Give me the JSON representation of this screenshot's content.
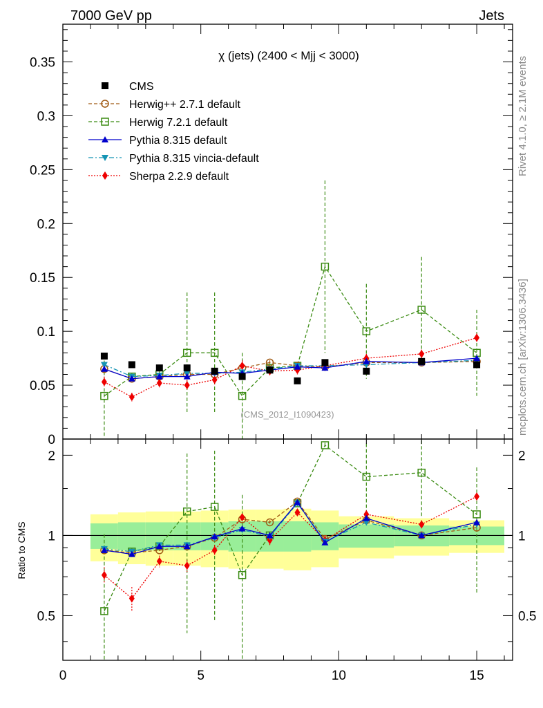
{
  "header": {
    "left": "7000 GeV pp",
    "right": "Jets"
  },
  "side_text": {
    "rivet": "Rivet 4.1.0, ≥ 2.1M events",
    "mcplots": "mcplots.cern.ch [arXiv:1306.3436]"
  },
  "watermark": "(CMS_2012_I1090423)",
  "chart_data": {
    "type": "scatter",
    "title": "χ (jets) (2400 < Mjj < 3000)",
    "xlabel": "",
    "ylabel": "",
    "xlim": [
      0,
      16.3
    ],
    "ylim": [
      0,
      0.385
    ],
    "yticks": [
      0,
      0.05,
      0.1,
      0.15,
      0.2,
      0.25,
      0.3,
      0.35
    ],
    "ytick_labels": [
      "0",
      "0.05",
      "0.1",
      "0.15",
      "0.2",
      "0.25",
      "0.3",
      "0.35"
    ],
    "xticks": [
      0,
      5,
      10,
      15
    ],
    "xtick_labels": [
      "0",
      "5",
      "10",
      "15"
    ],
    "x_edges": [
      1,
      2,
      3,
      4,
      5,
      6,
      7,
      8,
      9,
      10,
      12,
      14,
      16
    ],
    "x": [
      1.5,
      2.5,
      3.5,
      4.5,
      5.5,
      6.5,
      7.5,
      8.5,
      9.5,
      11,
      13,
      15
    ],
    "legend_position": "top-left",
    "series": [
      {
        "name": "CMS",
        "color": "#000000",
        "marker": "filled-square",
        "line": "none",
        "values": [
          0.077,
          0.069,
          0.066,
          0.066,
          0.063,
          0.058,
          0.064,
          0.054,
          0.071,
          0.063,
          0.072,
          0.069
        ],
        "errors": [
          0.003,
          0.002,
          0.002,
          0.002,
          0.002,
          0.002,
          0.002,
          0.002,
          0.002,
          0.002,
          0.002,
          0.002
        ]
      },
      {
        "name": "Herwig++ 2.7.1 default",
        "color": "#a05a14",
        "marker": "open-circle",
        "line": "dashed",
        "values": [
          0.065,
          0.056,
          0.058,
          0.06,
          0.06,
          0.066,
          0.071,
          0.068,
          0.067,
          0.071,
          0.071,
          0.072
        ],
        "errors": [
          0.003,
          0.002,
          0.002,
          0.002,
          0.002,
          0.003,
          0.002,
          0.002,
          0.002,
          0.002,
          0.002,
          0.003
        ]
      },
      {
        "name": "Herwig 7.2.1 default",
        "color": "#3c8c14",
        "marker": "open-square",
        "line": "dashed",
        "values": [
          0.04,
          0.058,
          0.06,
          0.08,
          0.08,
          0.04,
          0.066,
          0.068,
          0.16,
          0.1,
          0.12,
          0.08
        ],
        "errors": [
          0.038,
          0.003,
          0.003,
          0.056,
          0.056,
          0.04,
          0.003,
          0.003,
          0.08,
          0.044,
          0.049,
          0.04
        ]
      },
      {
        "name": "Pythia 8.315 default",
        "color": "#0000cc",
        "marker": "filled-triangle-up",
        "line": "solid",
        "values": [
          0.065,
          0.056,
          0.058,
          0.058,
          0.062,
          0.061,
          0.064,
          0.067,
          0.066,
          0.072,
          0.071,
          0.075
        ],
        "errors": [
          0.002,
          0.002,
          0.002,
          0.002,
          0.002,
          0.002,
          0.002,
          0.002,
          0.002,
          0.002,
          0.002,
          0.002
        ]
      },
      {
        "name": "Pythia 8.315 vincia-default",
        "color": "#1494b4",
        "marker": "filled-triangle-down",
        "line": "dashdot",
        "values": [
          0.069,
          0.058,
          0.059,
          0.061,
          0.061,
          0.062,
          0.065,
          0.068,
          0.068,
          0.069,
          0.071,
          0.073
        ],
        "errors": [
          0.002,
          0.002,
          0.002,
          0.002,
          0.002,
          0.002,
          0.002,
          0.002,
          0.002,
          0.002,
          0.002,
          0.002
        ]
      },
      {
        "name": "Sherpa 2.2.9 default",
        "color": "#ee0000",
        "marker": "filled-diamond",
        "line": "dotted",
        "values": [
          0.053,
          0.039,
          0.052,
          0.05,
          0.055,
          0.068,
          0.063,
          0.064,
          0.068,
          0.075,
          0.079,
          0.094
        ],
        "errors": [
          0.005,
          0.004,
          0.004,
          0.005,
          0.005,
          0.005,
          0.004,
          0.004,
          0.004,
          0.004,
          0.004,
          0.004
        ]
      }
    ],
    "ratio": {
      "ylabel": "Ratio to CMS",
      "ylim": [
        0.34,
        2.3
      ],
      "yticks": [
        0.5,
        1,
        2
      ],
      "ytick_labels": [
        "0.5",
        "1",
        "2"
      ],
      "reference_line": 1,
      "band_inner": [
        0.11,
        0.12,
        0.12,
        0.12,
        0.12,
        0.13,
        0.13,
        0.13,
        0.12,
        0.1,
        0.09,
        0.08
      ],
      "band_outer": [
        0.2,
        0.22,
        0.23,
        0.23,
        0.24,
        0.25,
        0.25,
        0.26,
        0.24,
        0.18,
        0.16,
        0.14
      ],
      "series": [
        {
          "name": "Herwig++ 2.7.1 default",
          "values": [
            0.88,
            0.86,
            0.88,
            0.91,
            0.98,
            1.15,
            1.12,
            1.34,
            0.97,
            1.14,
            1.0,
            1.07
          ],
          "errors": [
            0.03,
            0.02,
            0.02,
            0.02,
            0.02,
            0.03,
            0.02,
            0.02,
            0.02,
            0.02,
            0.02,
            0.03
          ]
        },
        {
          "name": "Herwig 7.2.1 default",
          "values": [
            0.52,
            0.87,
            0.91,
            1.23,
            1.28,
            0.71,
            1.0,
            1.32,
            2.18,
            1.66,
            1.72,
            1.2
          ],
          "errors": [
            0.49,
            0.03,
            0.03,
            0.8,
            0.8,
            0.71,
            0.03,
            0.03,
            0.05,
            0.55,
            0.55,
            0.6
          ]
        },
        {
          "name": "Pythia 8.315 default",
          "values": [
            0.88,
            0.85,
            0.91,
            0.91,
            0.99,
            1.06,
            1.0,
            1.33,
            0.94,
            1.16,
            1.0,
            1.12
          ],
          "errors": [
            0.02,
            0.02,
            0.02,
            0.02,
            0.02,
            0.02,
            0.02,
            0.02,
            0.02,
            0.02,
            0.02,
            0.02
          ]
        },
        {
          "name": "Pythia 8.315 vincia-default",
          "values": [
            0.89,
            0.87,
            0.92,
            0.92,
            0.98,
            1.05,
            0.99,
            1.32,
            0.95,
            1.12,
            1.0,
            1.1
          ],
          "errors": [
            0.02,
            0.02,
            0.02,
            0.02,
            0.02,
            0.02,
            0.02,
            0.02,
            0.02,
            0.02,
            0.02,
            0.02
          ]
        },
        {
          "name": "Sherpa 2.2.9 default",
          "values": [
            0.71,
            0.58,
            0.8,
            0.77,
            0.88,
            1.17,
            0.96,
            1.22,
            0.96,
            1.2,
            1.1,
            1.4
          ],
          "errors": [
            0.05,
            0.06,
            0.04,
            0.04,
            0.04,
            0.04,
            0.04,
            0.04,
            0.04,
            0.04,
            0.04,
            0.04
          ]
        }
      ]
    }
  }
}
